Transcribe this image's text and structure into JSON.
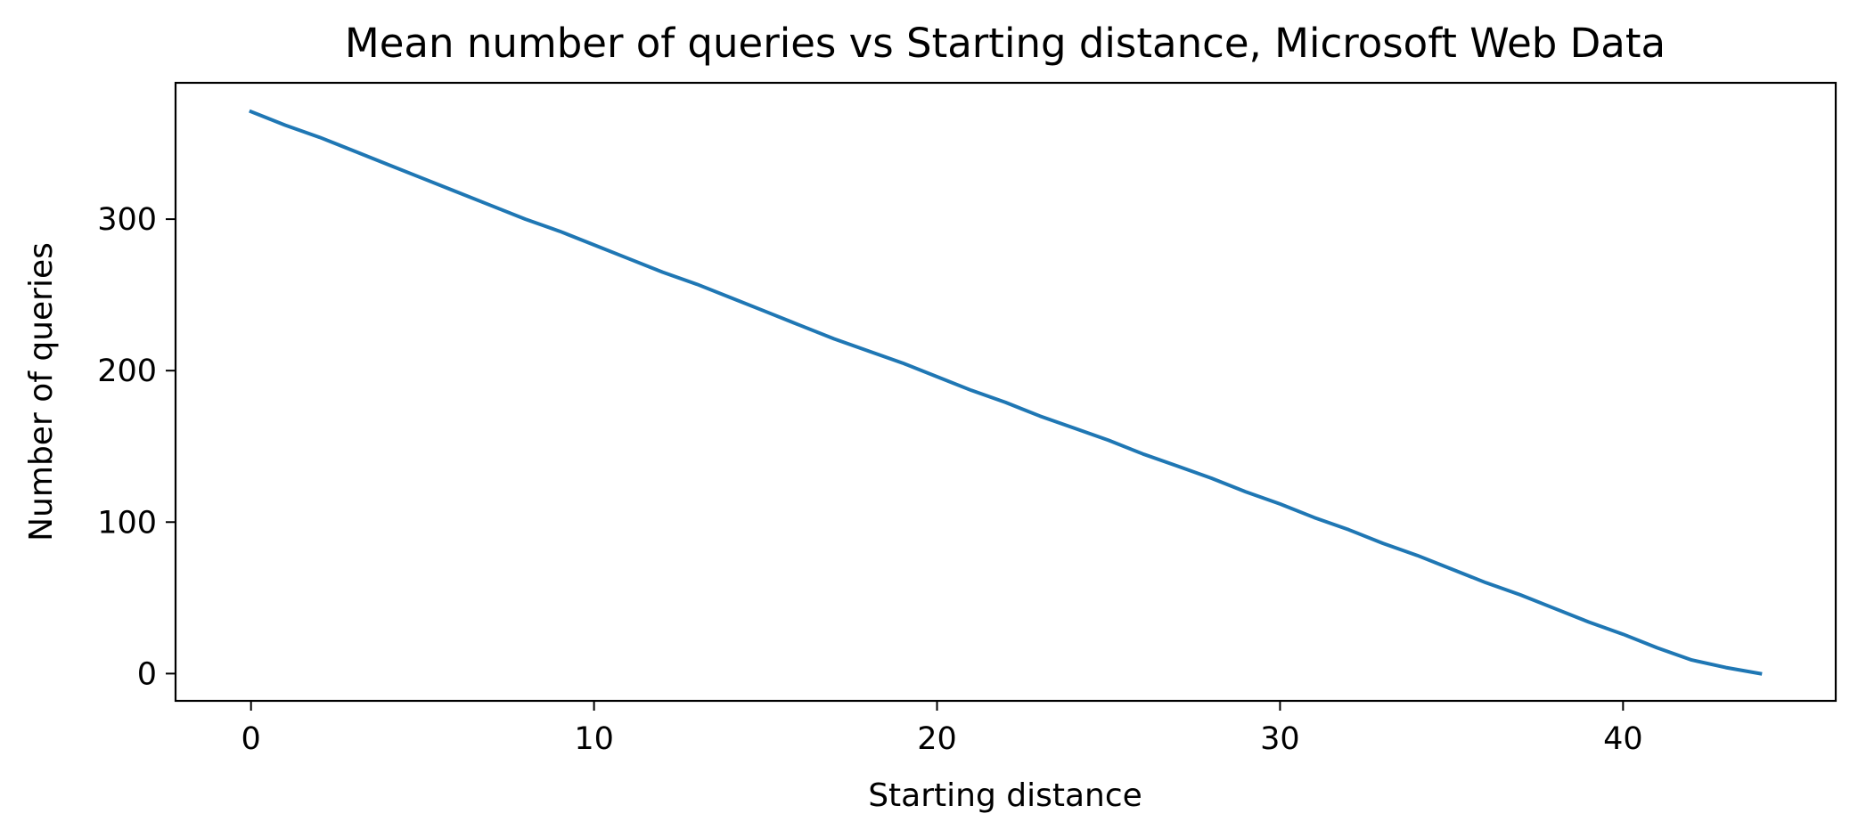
{
  "chart_data": {
    "type": "line",
    "title": "Mean number of queries vs Starting distance, Microsoft Web Data",
    "xlabel": "Starting distance",
    "ylabel": "Number of queries",
    "xlim": [
      -2.2,
      46.2
    ],
    "ylim": [
      -18,
      390
    ],
    "xticks": [
      0,
      10,
      20,
      30,
      40
    ],
    "yticks": [
      0,
      100,
      200,
      300
    ],
    "grid": false,
    "series": [
      {
        "color": "#1f77b4",
        "x": [
          0,
          1,
          2,
          3,
          4,
          5,
          6,
          7,
          8,
          9,
          10,
          11,
          12,
          13,
          14,
          15,
          16,
          17,
          18,
          19,
          20,
          21,
          22,
          23,
          24,
          25,
          26,
          27,
          28,
          29,
          30,
          31,
          32,
          33,
          34,
          35,
          36,
          37,
          38,
          39,
          40,
          41,
          42,
          43,
          44
        ],
        "values": [
          371,
          362,
          354,
          345,
          336,
          327,
          318,
          309,
          300,
          292,
          283,
          274,
          265,
          257,
          248,
          239,
          230,
          221,
          213,
          205,
          196,
          187,
          179,
          170,
          162,
          154,
          145,
          137,
          129,
          120,
          112,
          103,
          95,
          86,
          78,
          69,
          60,
          52,
          43,
          34,
          26,
          17,
          9,
          4,
          0
        ]
      }
    ]
  }
}
